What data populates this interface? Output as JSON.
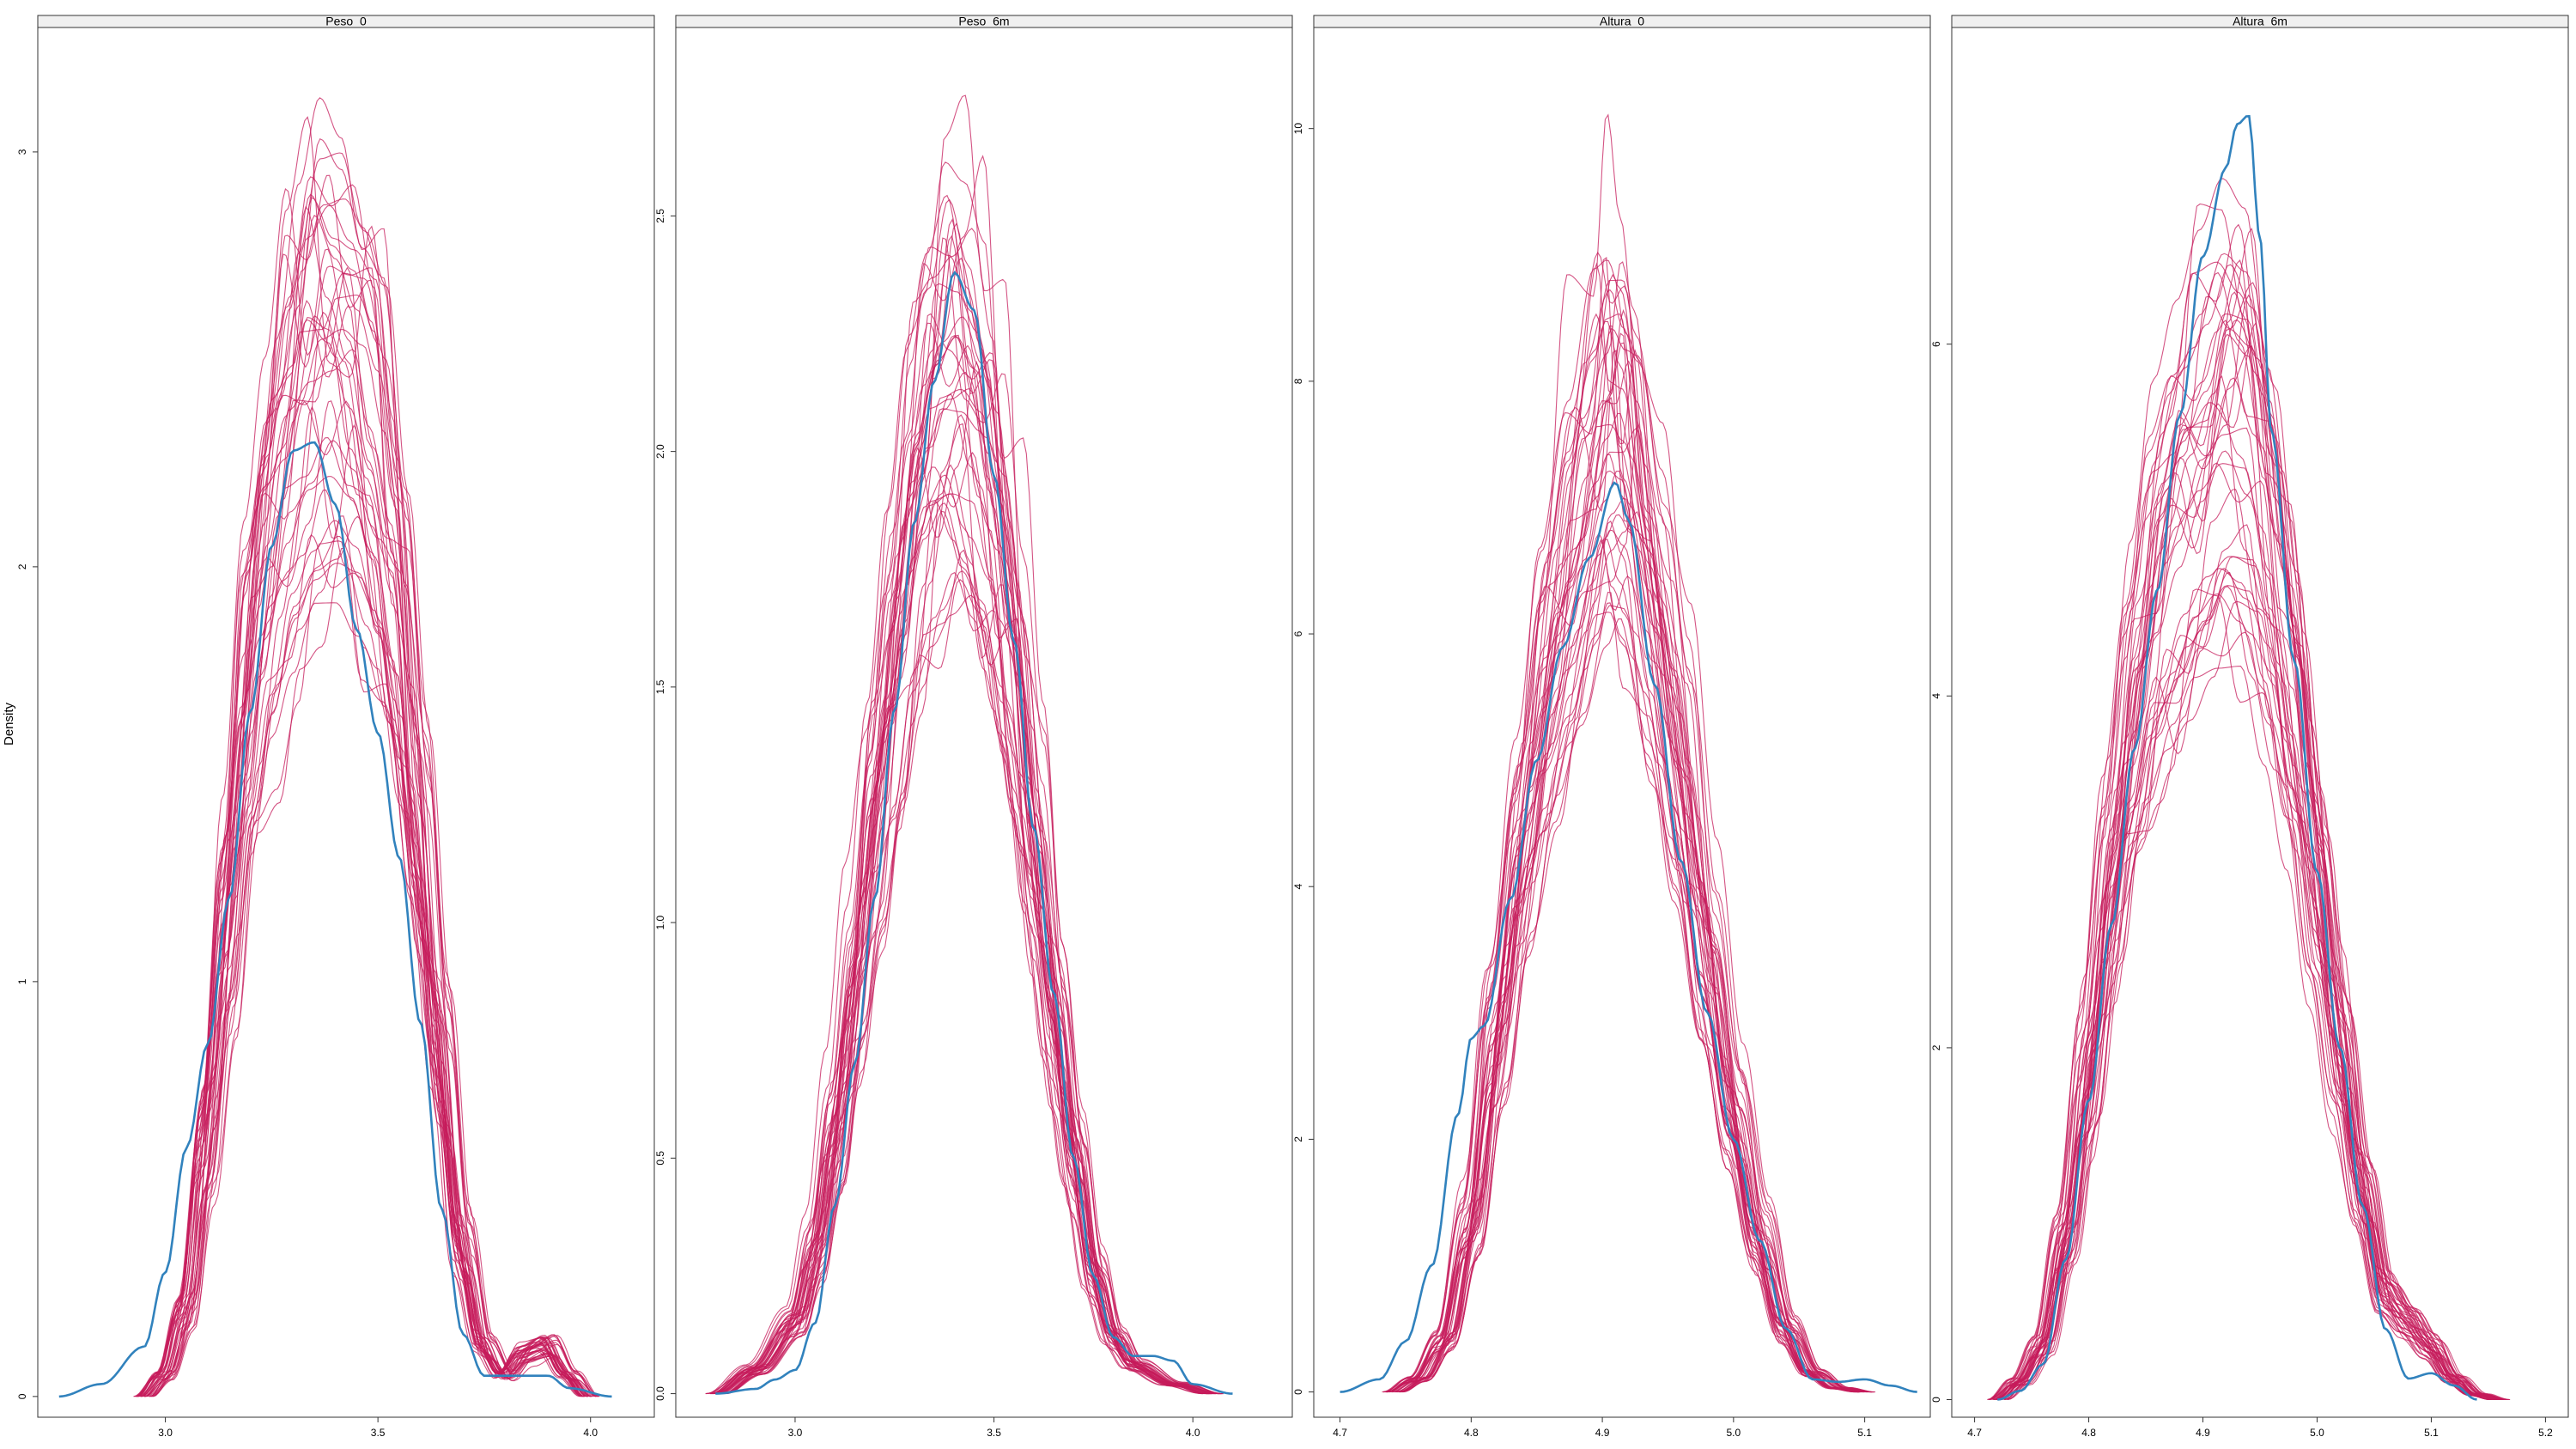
{
  "figure": {
    "ylabel": "Density",
    "observed_color": "#3182bd",
    "imputed_color": "#c51b5b"
  },
  "chart_data": [
    {
      "type": "line",
      "title": "Peso_0",
      "xlim": [
        2.7,
        4.15
      ],
      "ylim": [
        -0.05,
        3.3
      ],
      "xticks": [
        {
          "v": 3.0,
          "label": "3.0"
        },
        {
          "v": 3.5,
          "label": "3.5"
        },
        {
          "v": 4.0,
          "label": "4.0"
        }
      ],
      "yticks": [
        {
          "v": 0,
          "label": "0"
        },
        {
          "v": 1,
          "label": "1"
        },
        {
          "v": 2,
          "label": "2"
        },
        {
          "v": 3,
          "label": "3"
        }
      ],
      "observed": [
        [
          2.75,
          0.0
        ],
        [
          2.85,
          0.03
        ],
        [
          2.95,
          0.12
        ],
        [
          3.0,
          0.3
        ],
        [
          3.05,
          0.6
        ],
        [
          3.1,
          0.85
        ],
        [
          3.15,
          1.2
        ],
        [
          3.2,
          1.65
        ],
        [
          3.25,
          2.05
        ],
        [
          3.3,
          2.28
        ],
        [
          3.35,
          2.3
        ],
        [
          3.4,
          2.15
        ],
        [
          3.45,
          1.85
        ],
        [
          3.5,
          1.6
        ],
        [
          3.55,
          1.3
        ],
        [
          3.6,
          0.9
        ],
        [
          3.65,
          0.45
        ],
        [
          3.7,
          0.15
        ],
        [
          3.75,
          0.05
        ],
        [
          3.85,
          0.05
        ],
        [
          3.9,
          0.05
        ],
        [
          3.95,
          0.02
        ],
        [
          4.05,
          0.0
        ]
      ],
      "imputed_template": [
        [
          2.95,
          0.0
        ],
        [
          3.0,
          0.05
        ],
        [
          3.05,
          0.2
        ],
        [
          3.1,
          0.6
        ],
        [
          3.15,
          1.1
        ],
        [
          3.2,
          1.6
        ],
        [
          3.25,
          1.95
        ],
        [
          3.3,
          2.2
        ],
        [
          3.35,
          2.35
        ],
        [
          3.4,
          2.38
        ],
        [
          3.45,
          2.32
        ],
        [
          3.5,
          2.15
        ],
        [
          3.55,
          1.8
        ],
        [
          3.6,
          1.3
        ],
        [
          3.65,
          0.8
        ],
        [
          3.7,
          0.35
        ],
        [
          3.75,
          0.12
        ],
        [
          3.8,
          0.05
        ],
        [
          3.85,
          0.1
        ],
        [
          3.9,
          0.12
        ],
        [
          3.95,
          0.05
        ],
        [
          4.0,
          0.0
        ]
      ],
      "imputed_count": 40
    },
    {
      "type": "line",
      "title": "Peso_6m",
      "xlim": [
        2.7,
        4.25
      ],
      "ylim": [
        -0.05,
        2.9
      ],
      "xticks": [
        {
          "v": 3.0,
          "label": "3.0"
        },
        {
          "v": 3.5,
          "label": "3.5"
        },
        {
          "v": 4.0,
          "label": "4.0"
        }
      ],
      "yticks": [
        {
          "v": 0,
          "label": "0.0"
        },
        {
          "v": 0.5,
          "label": "0.5"
        },
        {
          "v": 1.0,
          "label": "1.0"
        },
        {
          "v": 1.5,
          "label": "1.5"
        },
        {
          "v": 2.0,
          "label": "2.0"
        },
        {
          "v": 2.5,
          "label": "2.5"
        }
      ],
      "observed": [
        [
          2.8,
          0.0
        ],
        [
          2.9,
          0.01
        ],
        [
          2.95,
          0.03
        ],
        [
          3.0,
          0.05
        ],
        [
          3.05,
          0.15
        ],
        [
          3.1,
          0.4
        ],
        [
          3.15,
          0.7
        ],
        [
          3.2,
          1.05
        ],
        [
          3.25,
          1.45
        ],
        [
          3.3,
          1.85
        ],
        [
          3.35,
          2.15
        ],
        [
          3.4,
          2.38
        ],
        [
          3.45,
          2.3
        ],
        [
          3.5,
          1.95
        ],
        [
          3.55,
          1.6
        ],
        [
          3.6,
          1.2
        ],
        [
          3.65,
          0.85
        ],
        [
          3.7,
          0.5
        ],
        [
          3.75,
          0.25
        ],
        [
          3.8,
          0.12
        ],
        [
          3.85,
          0.08
        ],
        [
          3.9,
          0.08
        ],
        [
          3.95,
          0.07
        ],
        [
          4.0,
          0.02
        ],
        [
          4.1,
          0.0
        ]
      ],
      "imputed_template": [
        [
          2.8,
          0.0
        ],
        [
          2.9,
          0.05
        ],
        [
          3.0,
          0.15
        ],
        [
          3.05,
          0.3
        ],
        [
          3.1,
          0.55
        ],
        [
          3.15,
          0.85
        ],
        [
          3.2,
          1.2
        ],
        [
          3.25,
          1.55
        ],
        [
          3.3,
          1.85
        ],
        [
          3.35,
          2.05
        ],
        [
          3.4,
          2.1
        ],
        [
          3.45,
          2.0
        ],
        [
          3.5,
          1.8
        ],
        [
          3.55,
          1.5
        ],
        [
          3.6,
          1.15
        ],
        [
          3.65,
          0.8
        ],
        [
          3.7,
          0.5
        ],
        [
          3.75,
          0.25
        ],
        [
          3.8,
          0.12
        ],
        [
          3.85,
          0.06
        ],
        [
          3.95,
          0.02
        ],
        [
          4.05,
          0.0
        ]
      ],
      "imputed_count": 40
    },
    {
      "type": "line",
      "title": "Altura_0",
      "xlim": [
        4.68,
        5.15
      ],
      "ylim": [
        -0.2,
        10.8
      ],
      "xticks": [
        {
          "v": 4.7,
          "label": "4.7"
        },
        {
          "v": 4.8,
          "label": "4.8"
        },
        {
          "v": 4.9,
          "label": "4.9"
        },
        {
          "v": 5.0,
          "label": "5.0"
        },
        {
          "v": 5.1,
          "label": "5.1"
        }
      ],
      "yticks": [
        {
          "v": 0,
          "label": "0"
        },
        {
          "v": 2,
          "label": "2"
        },
        {
          "v": 4,
          "label": "4"
        },
        {
          "v": 6,
          "label": "6"
        },
        {
          "v": 8,
          "label": "8"
        },
        {
          "v": 10,
          "label": "10"
        }
      ],
      "observed": [
        [
          4.7,
          0.0
        ],
        [
          4.73,
          0.1
        ],
        [
          4.75,
          0.4
        ],
        [
          4.77,
          1.0
        ],
        [
          4.79,
          2.2
        ],
        [
          4.8,
          2.8
        ],
        [
          4.81,
          2.9
        ],
        [
          4.83,
          3.9
        ],
        [
          4.85,
          5.0
        ],
        [
          4.87,
          5.9
        ],
        [
          4.89,
          6.6
        ],
        [
          4.91,
          7.2
        ],
        [
          4.92,
          6.9
        ],
        [
          4.94,
          5.6
        ],
        [
          4.96,
          4.2
        ],
        [
          4.98,
          3.0
        ],
        [
          5.0,
          2.0
        ],
        [
          5.02,
          1.2
        ],
        [
          5.04,
          0.5
        ],
        [
          5.06,
          0.1
        ],
        [
          5.08,
          0.08
        ],
        [
          5.1,
          0.1
        ],
        [
          5.12,
          0.05
        ],
        [
          5.14,
          0.0
        ]
      ],
      "imputed_template": [
        [
          4.74,
          0.0
        ],
        [
          4.76,
          0.1
        ],
        [
          4.78,
          0.4
        ],
        [
          4.8,
          1.3
        ],
        [
          4.82,
          2.8
        ],
        [
          4.84,
          4.3
        ],
        [
          4.86,
          5.6
        ],
        [
          4.88,
          6.6
        ],
        [
          4.9,
          7.4
        ],
        [
          4.91,
          7.6
        ],
        [
          4.92,
          7.3
        ],
        [
          4.94,
          6.2
        ],
        [
          4.96,
          4.8
        ],
        [
          4.98,
          3.4
        ],
        [
          5.0,
          2.2
        ],
        [
          5.02,
          1.2
        ],
        [
          5.04,
          0.5
        ],
        [
          5.06,
          0.15
        ],
        [
          5.08,
          0.03
        ],
        [
          5.1,
          0.0
        ]
      ],
      "imputed_count": 40
    },
    {
      "type": "line",
      "title": "Altura_6m",
      "xlim": [
        4.68,
        5.22
      ],
      "ylim": [
        -0.1,
        7.8
      ],
      "xticks": [
        {
          "v": 4.7,
          "label": "4.7"
        },
        {
          "v": 4.8,
          "label": "4.8"
        },
        {
          "v": 4.9,
          "label": "4.9"
        },
        {
          "v": 5.0,
          "label": "5.0"
        },
        {
          "v": 5.1,
          "label": "5.1"
        },
        {
          "v": 5.2,
          "label": "5.2"
        }
      ],
      "yticks": [
        {
          "v": 0,
          "label": "0"
        },
        {
          "v": 2,
          "label": "2"
        },
        {
          "v": 4,
          "label": "4"
        },
        {
          "v": 6,
          "label": "6"
        }
      ],
      "observed": [
        [
          4.72,
          0.0
        ],
        [
          4.74,
          0.05
        ],
        [
          4.76,
          0.2
        ],
        [
          4.78,
          0.8
        ],
        [
          4.8,
          1.7
        ],
        [
          4.82,
          2.7
        ],
        [
          4.84,
          3.7
        ],
        [
          4.86,
          4.6
        ],
        [
          4.88,
          5.6
        ],
        [
          4.9,
          6.5
        ],
        [
          4.92,
          7.0
        ],
        [
          4.93,
          7.25
        ],
        [
          4.94,
          7.3
        ],
        [
          4.95,
          6.6
        ],
        [
          4.96,
          5.5
        ],
        [
          4.98,
          4.2
        ],
        [
          5.0,
          3.0
        ],
        [
          5.02,
          2.0
        ],
        [
          5.04,
          1.1
        ],
        [
          5.06,
          0.4
        ],
        [
          5.08,
          0.12
        ],
        [
          5.1,
          0.15
        ],
        [
          5.12,
          0.08
        ],
        [
          5.14,
          0.0
        ]
      ],
      "imputed_template": [
        [
          4.72,
          0.0
        ],
        [
          4.74,
          0.1
        ],
        [
          4.76,
          0.3
        ],
        [
          4.78,
          0.9
        ],
        [
          4.8,
          1.8
        ],
        [
          4.82,
          2.9
        ],
        [
          4.84,
          3.8
        ],
        [
          4.86,
          4.5
        ],
        [
          4.88,
          4.9
        ],
        [
          4.9,
          5.2
        ],
        [
          4.92,
          5.5
        ],
        [
          4.94,
          5.4
        ],
        [
          4.96,
          4.8
        ],
        [
          4.98,
          3.9
        ],
        [
          5.0,
          2.9
        ],
        [
          5.02,
          2.0
        ],
        [
          5.04,
          1.2
        ],
        [
          5.06,
          0.6
        ],
        [
          5.08,
          0.45
        ],
        [
          5.1,
          0.3
        ],
        [
          5.12,
          0.12
        ],
        [
          5.14,
          0.03
        ],
        [
          5.16,
          0.0
        ]
      ],
      "imputed_count": 40
    }
  ]
}
